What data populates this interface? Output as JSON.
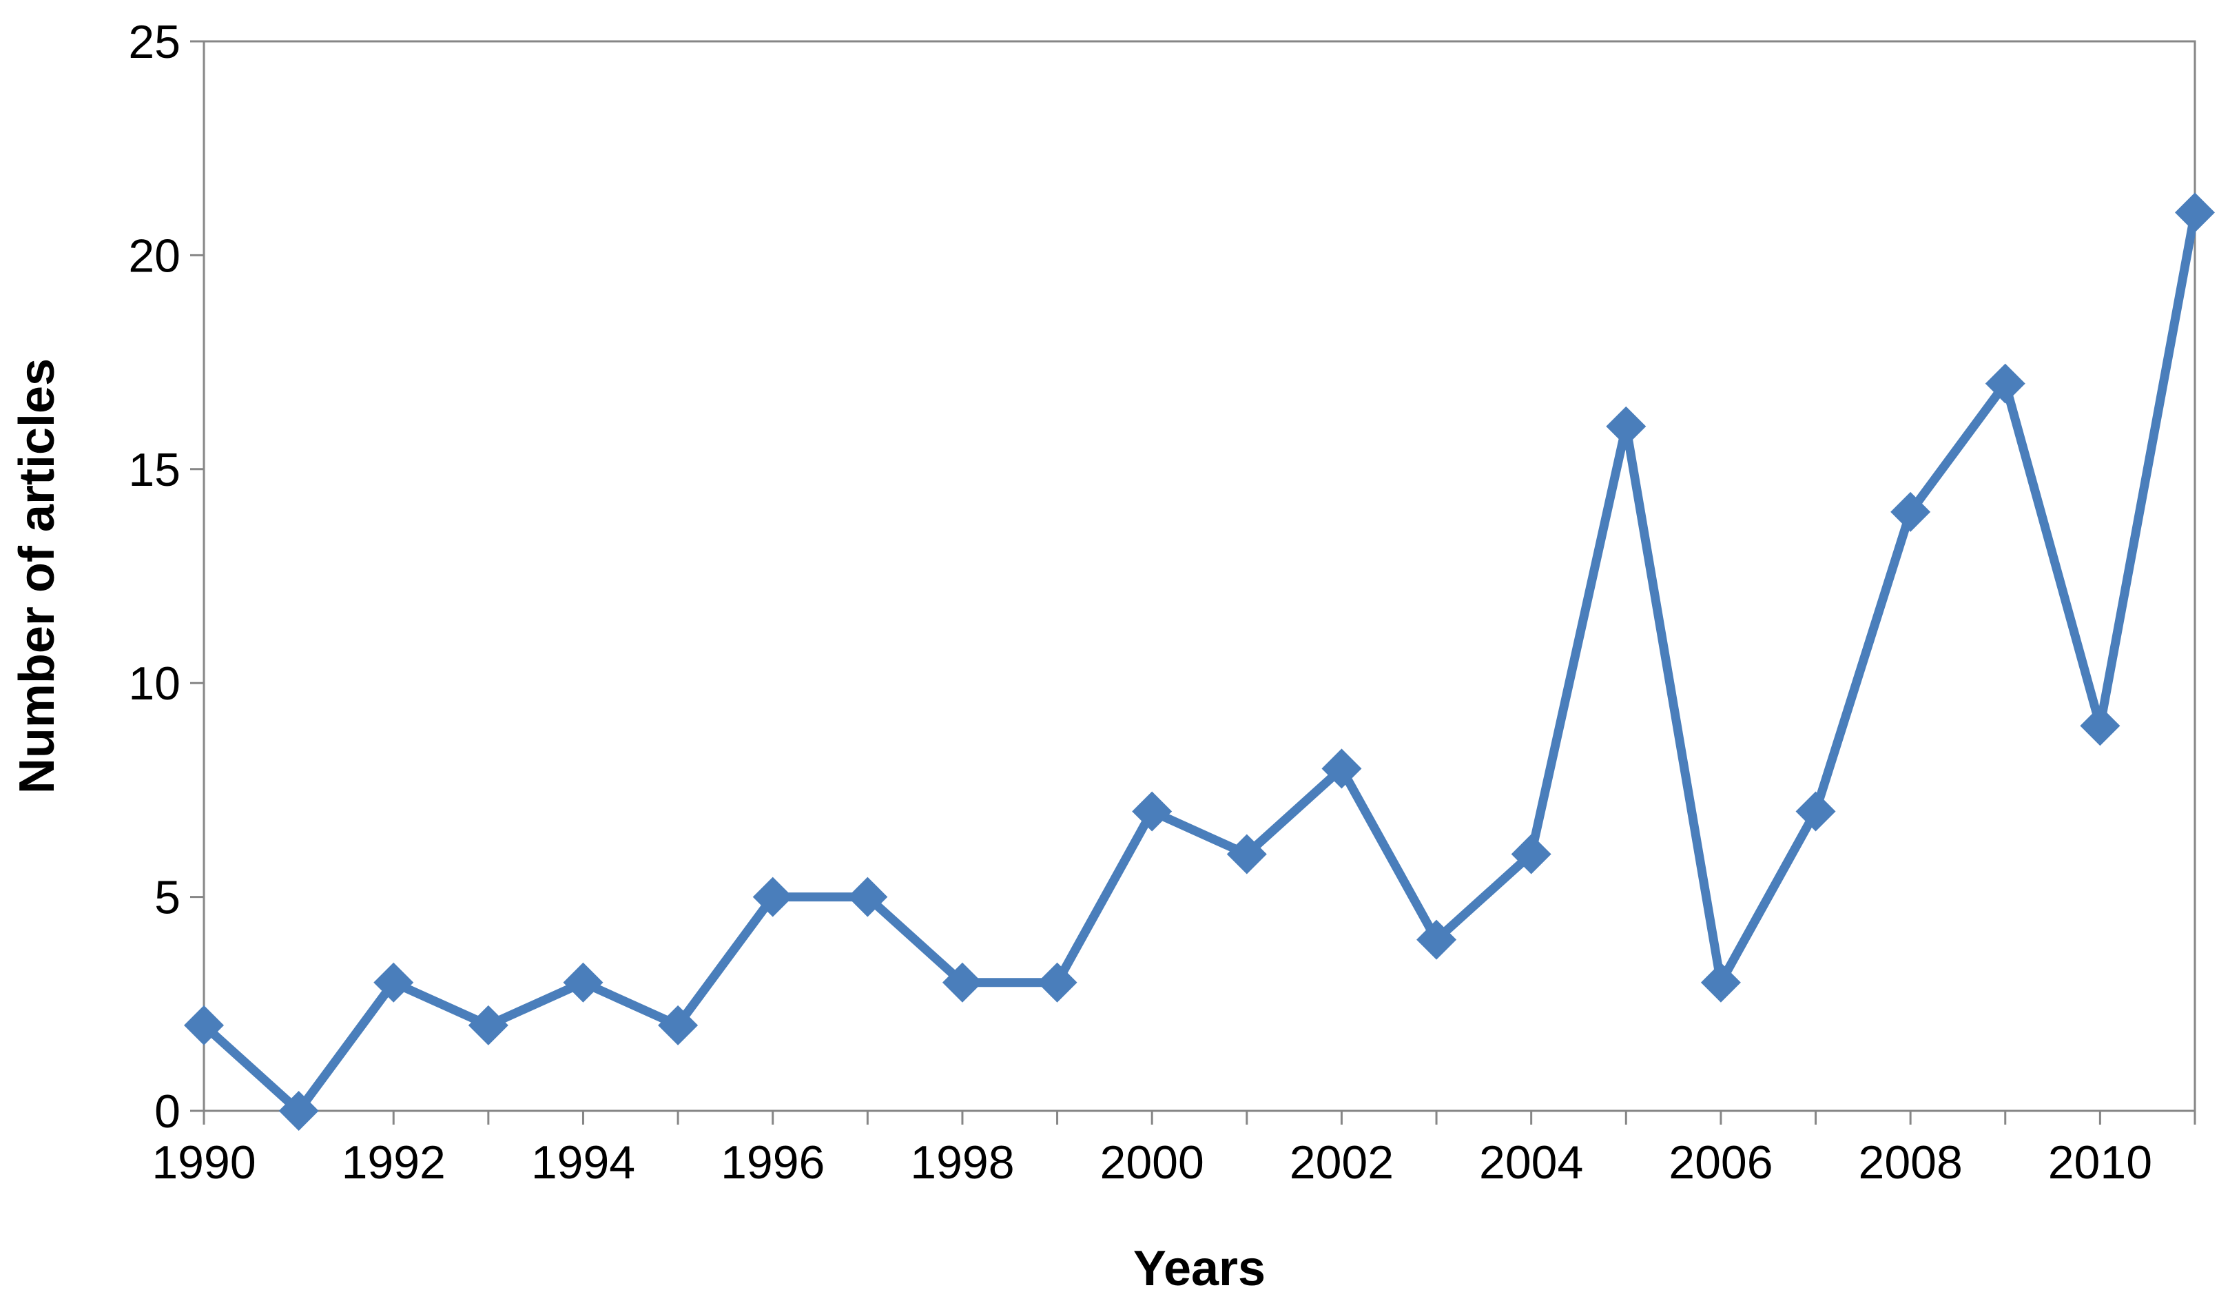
{
  "chart_data": {
    "type": "line",
    "title": "",
    "xlabel": "Years",
    "ylabel": "Number of articles",
    "x": [
      1990,
      1991,
      1992,
      1993,
      1994,
      1995,
      1996,
      1997,
      1998,
      1999,
      2000,
      2001,
      2002,
      2003,
      2004,
      2005,
      2006,
      2007,
      2008,
      2009,
      2010,
      2011
    ],
    "series": [
      {
        "values": [
          2,
          0,
          3,
          2,
          3,
          2,
          5,
          5,
          3,
          3,
          7,
          6,
          8,
          4,
          6,
          16,
          3,
          7,
          14,
          17,
          9,
          21
        ],
        "color": "#4a7ebb",
        "marker": "diamond"
      }
    ],
    "xlim": [
      1990,
      2011
    ],
    "ylim": [
      0,
      25
    ],
    "x_ticks": [
      "1990",
      "1992",
      "1994",
      "1996",
      "1998",
      "2000",
      "2002",
      "2004",
      "2006",
      "2008",
      "2010"
    ],
    "y_ticks": [
      "0",
      "5",
      "10",
      "15",
      "20",
      "25"
    ],
    "grid": false,
    "legend": "none"
  }
}
